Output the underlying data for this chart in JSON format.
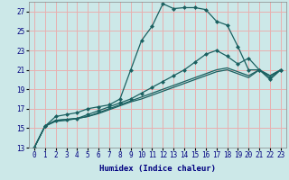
{
  "xlabel": "Humidex (Indice chaleur)",
  "bg_color": "#cce8e8",
  "grid_color": "#e8b0b0",
  "line_color": "#1a6060",
  "xlim": [
    -0.5,
    23.5
  ],
  "ylim": [
    13,
    28
  ],
  "xticks": [
    0,
    1,
    2,
    3,
    4,
    5,
    6,
    7,
    8,
    9,
    10,
    11,
    12,
    13,
    14,
    15,
    16,
    17,
    18,
    19,
    20,
    21,
    22,
    23
  ],
  "yticks": [
    13,
    15,
    17,
    19,
    21,
    23,
    25,
    27
  ],
  "curve1_x": [
    0,
    1,
    2,
    3,
    4,
    5,
    6,
    7,
    8,
    9,
    10,
    11,
    12,
    13,
    14,
    15,
    16,
    17,
    18,
    19,
    20,
    21,
    22,
    23
  ],
  "curve1_y": [
    13,
    15.2,
    16.2,
    16.4,
    16.6,
    17.0,
    17.2,
    17.4,
    18.0,
    21.0,
    24.0,
    25.5,
    27.8,
    27.3,
    27.4,
    27.4,
    27.2,
    26.0,
    25.6,
    23.4,
    21.0,
    21.0,
    20.0,
    21.0
  ],
  "curve1_markers": [
    0,
    1,
    2,
    3,
    4,
    5,
    6,
    7,
    8,
    9,
    10,
    11,
    12,
    13,
    14,
    15,
    16,
    17,
    18,
    19,
    20,
    21,
    22,
    23
  ],
  "curve2_x": [
    0,
    1,
    2,
    3,
    4,
    5,
    6,
    7,
    8,
    9,
    10,
    11,
    12,
    13,
    14,
    15,
    16,
    17,
    18,
    19,
    20,
    21,
    22,
    23
  ],
  "curve2_y": [
    13,
    15.2,
    15.8,
    15.9,
    16.0,
    16.4,
    16.8,
    17.2,
    17.6,
    18.0,
    18.6,
    19.2,
    19.8,
    20.4,
    21.0,
    21.8,
    22.6,
    23.0,
    22.4,
    21.6,
    22.2,
    21.0,
    20.2,
    21.0
  ],
  "curve3_x": [
    0,
    1,
    2,
    3,
    4,
    5,
    6,
    7,
    8,
    9,
    10,
    11,
    12,
    13,
    14,
    15,
    16,
    17,
    18,
    19,
    20,
    21,
    22,
    23
  ],
  "curve3_y": [
    13,
    15.2,
    15.8,
    15.9,
    16.0,
    16.2,
    16.6,
    17.0,
    17.4,
    17.8,
    18.2,
    18.6,
    19.0,
    19.4,
    19.8,
    20.2,
    20.6,
    21.0,
    21.2,
    20.8,
    20.4,
    21.0,
    20.4,
    21.0
  ],
  "curve4_x": [
    0,
    1,
    2,
    3,
    4,
    5,
    6,
    7,
    8,
    9,
    10,
    11,
    12,
    13,
    14,
    15,
    16,
    17,
    18,
    19,
    20,
    21,
    22,
    23
  ],
  "curve4_y": [
    13,
    15.2,
    15.7,
    15.8,
    16.0,
    16.2,
    16.5,
    16.9,
    17.3,
    17.7,
    18.0,
    18.4,
    18.8,
    19.2,
    19.6,
    20.0,
    20.4,
    20.8,
    21.0,
    20.6,
    20.2,
    21.0,
    20.4,
    21.0
  ]
}
